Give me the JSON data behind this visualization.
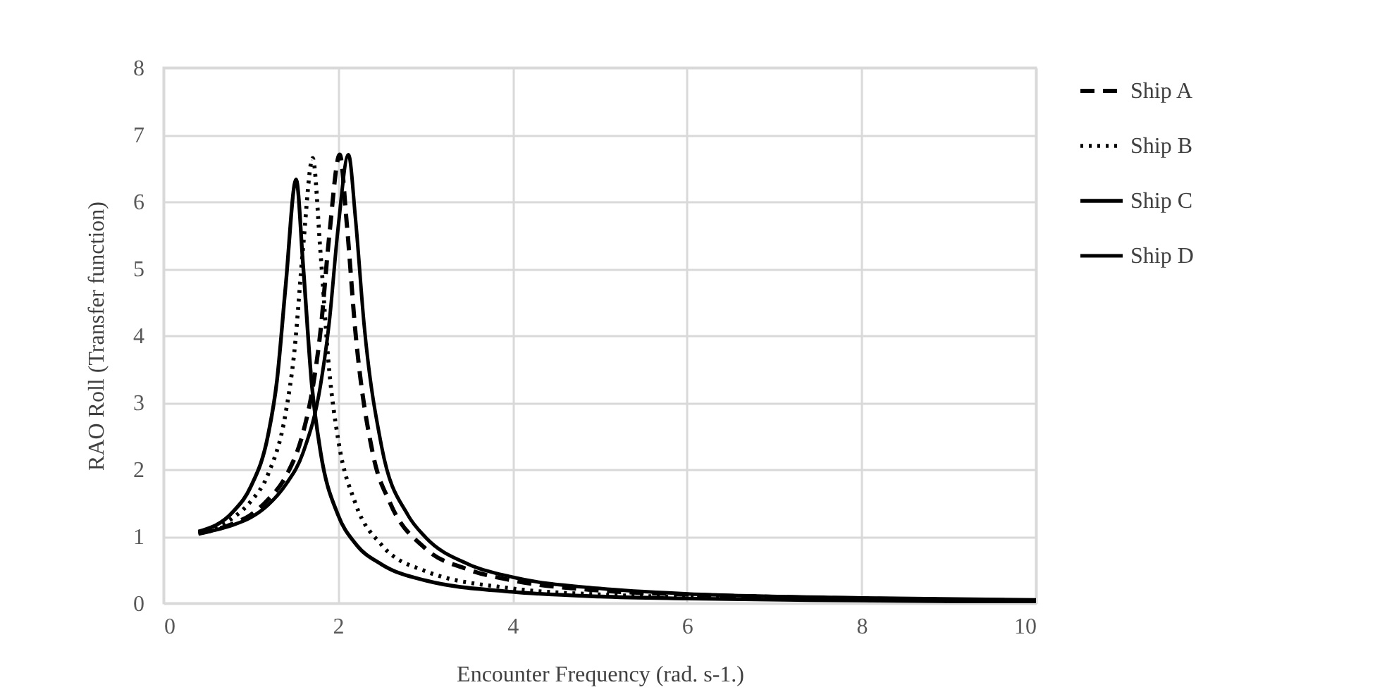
{
  "chart_data": {
    "type": "line",
    "xlabel": "Encounter Frequency (rad. s-1.)",
    "ylabel": "RAO Roll (Transfer function)",
    "xlim": [
      0,
      10
    ],
    "xticks": [
      0,
      2,
      4,
      6,
      8,
      10
    ],
    "ylim": [
      0,
      8
    ],
    "yticks": [
      0,
      1,
      2,
      3,
      4,
      5,
      6,
      7,
      8
    ],
    "grid": true,
    "legend": "right",
    "marker": "none",
    "series": [
      {
        "name": "Ship A",
        "color": "#000000",
        "line_style": "dashed",
        "x": [
          0.4,
          0.8,
          1.0,
          1.2,
          1.4,
          1.6,
          1.7,
          1.8,
          1.9,
          2.02,
          2.1,
          2.2,
          2.4,
          2.6,
          3,
          3.5,
          4,
          5,
          6,
          8,
          10
        ],
        "values": [
          1.04,
          1.19,
          1.32,
          1.55,
          1.89,
          2.55,
          3.14,
          4.07,
          5.49,
          6.7,
          5.68,
          4.05,
          2.23,
          1.49,
          0.82,
          0.5,
          0.34,
          0.19,
          0.13,
          0.07,
          0.04
        ]
      },
      {
        "name": "Ship B",
        "color": "#000000",
        "line_style": "dotted",
        "x": [
          0.4,
          0.8,
          1.0,
          1.2,
          1.4,
          1.5,
          1.6,
          1.71,
          1.8,
          1.9,
          2.0,
          2.2,
          2.5,
          3,
          4,
          5,
          6,
          8,
          10
        ],
        "values": [
          1.06,
          1.28,
          1.52,
          1.93,
          2.84,
          3.76,
          5.32,
          6.65,
          5.23,
          3.47,
          2.46,
          1.49,
          0.87,
          0.48,
          0.22,
          0.13,
          0.09,
          0.05,
          0.03
        ]
      },
      {
        "name": "Ship C",
        "color": "#000000",
        "line_style": "solid",
        "x": [
          0.4,
          0.8,
          1.0,
          1.2,
          1.3,
          1.4,
          1.52,
          1.6,
          1.7,
          1.8,
          2.0,
          2.2,
          2.5,
          3,
          4,
          5,
          6,
          8,
          10
        ],
        "values": [
          1.07,
          1.37,
          1.74,
          2.52,
          3.32,
          4.74,
          6.33,
          5.05,
          3.26,
          2.26,
          1.32,
          0.89,
          0.58,
          0.34,
          0.17,
          0.1,
          0.07,
          0.04,
          0.02
        ]
      },
      {
        "name": "Ship D",
        "color": "#000000",
        "line_style": "solid",
        "x": [
          0.4,
          0.8,
          1.0,
          1.2,
          1.4,
          1.6,
          1.8,
          1.9,
          2.0,
          2.12,
          2.2,
          2.3,
          2.5,
          2.8,
          3,
          3.5,
          4,
          5,
          6,
          8,
          10
        ],
        "values": [
          1.04,
          1.17,
          1.28,
          1.47,
          1.77,
          2.25,
          3.26,
          4.2,
          5.59,
          6.7,
          5.75,
          4.15,
          2.34,
          1.32,
          0.99,
          0.58,
          0.39,
          0.22,
          0.14,
          0.08,
          0.05
        ]
      }
    ]
  }
}
